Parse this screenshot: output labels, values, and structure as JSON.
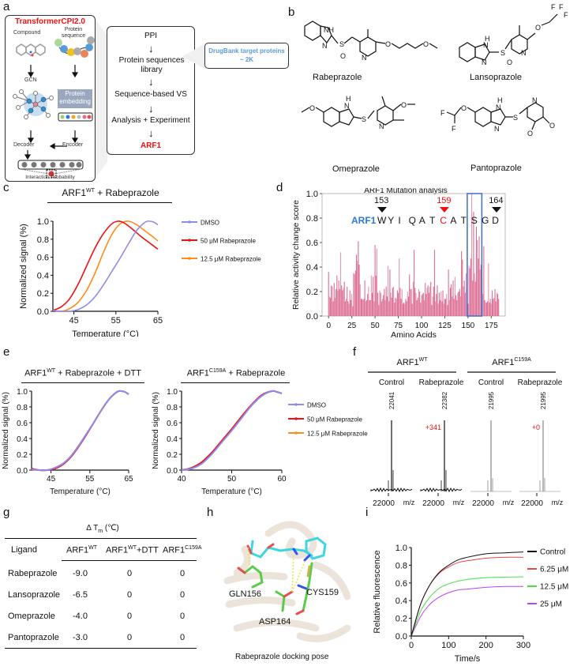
{
  "panels": {
    "a": {
      "label": "a",
      "model_title": "TransformerCPI2.0",
      "compound": "Compound",
      "protein_sequence": "Protein sequence",
      "gcn": "GCN",
      "protein_embedding": "Protein embedding",
      "decoder": "Decoder",
      "encoder": "Encoder",
      "interaction_probability": "Interaction Probability",
      "workflow": [
        "PPI",
        "Protein sequences library",
        "Sequence-based VS",
        "Analysis + Experiment",
        "ARF1"
      ],
      "drugbank_line1": "DrugBank target proteins",
      "drugbank_line2": "~ 2K",
      "embedding_dot_colors": [
        "#8fd16b",
        "#2b7bd1",
        "#f2a51a",
        "#bbbbbb",
        "#e0707a",
        "#e05060"
      ],
      "accent_red": "#ee1111",
      "accent_blue": "#5b9bd5"
    },
    "b": {
      "label": "b",
      "compounds": [
        "Rabeprazole",
        "Lansoprazole",
        "Omeprazole",
        "Pantoprazole"
      ]
    },
    "c": {
      "label": "c",
      "header_main": "ARF1",
      "header_sup": "WT",
      "header_rest": " + Rabeprazole"
    },
    "d": {
      "label": "d",
      "seq_prefix": "ARF1",
      "sequence": [
        "W",
        "Y",
        "I",
        "Q",
        "A",
        "T",
        "C",
        "A",
        "T",
        "S",
        "G",
        "D"
      ],
      "markers": [
        {
          "pos": "153",
          "color": "#111111"
        },
        {
          "pos": "159",
          "color": "#ee1111"
        },
        {
          "pos": "164",
          "color": "#111111"
        }
      ]
    },
    "e": {
      "label": "e",
      "left_header_main": "ARF1",
      "left_header_sup": "WT",
      "left_header_rest": " + Rabeprazole + DTT",
      "right_header_main": "ARF1",
      "right_header_sup": "C159A",
      "right_header_rest": " + Rabeprazole"
    },
    "f": {
      "label": "f",
      "groups": [
        {
          "name": "ARF1",
          "sup": "WT",
          "conditions": [
            {
              "name": "Control",
              "peak": "22041",
              "shift": ""
            },
            {
              "name": "Rabeprazole",
              "peak": "22382",
              "shift": "+341"
            }
          ]
        },
        {
          "name": "ARF1",
          "sup": "C159A",
          "conditions": [
            {
              "name": "Control",
              "peak": "21995",
              "shift": ""
            },
            {
              "name": "Rabeprazole",
              "peak": "21995",
              "shift": "+0"
            }
          ]
        }
      ],
      "x_tick": "22000",
      "x_unit": "m/z"
    },
    "g": {
      "label": "g",
      "title_main": "Δ T",
      "title_sub": "m",
      "title_rest": " (℃)",
      "columns": [
        {
          "main": "Ligand",
          "sup": ""
        },
        {
          "main": "ARF1",
          "sup": "WT"
        },
        {
          "main": "ARF1",
          "sup": "WT",
          "rest": "+DTT"
        },
        {
          "main": "ARF1",
          "sup": "C159A"
        }
      ],
      "rows": [
        [
          "Rabeprazole",
          "-9.0",
          "0",
          "0"
        ],
        [
          "Lansoprazole",
          "-6.5",
          "0",
          "0"
        ],
        [
          "Omeprazole",
          "-4.0",
          "0",
          "0"
        ],
        [
          "Pantoprazole",
          "-3.0",
          "0",
          "0"
        ]
      ]
    },
    "h": {
      "label": "h",
      "residues": [
        "GLN156",
        "CYS159",
        "ASP164"
      ],
      "caption": "Rabeprazole docking pose"
    },
    "i": {
      "label": "i"
    }
  },
  "chart_data": [
    {
      "id": "c",
      "type": "line",
      "title": "ARF1WT + Rabeprazole",
      "xlabel": "Temperature (°C)",
      "ylabel": "Normalized signal (%)",
      "xlim": [
        40,
        65
      ],
      "ylim": [
        0,
        1.0
      ],
      "xticks": [
        "45",
        "55",
        "65"
      ],
      "yticks": [
        "0.0",
        "0.2",
        "0.4",
        "0.6",
        "0.8",
        "1.0"
      ],
      "legend_position": "right",
      "series": [
        {
          "name": "DMSO",
          "color": "#8c8cf0",
          "x": [
            40,
            42,
            44,
            46,
            48,
            50,
            52,
            54,
            56,
            58,
            60,
            62,
            63,
            64,
            65
          ],
          "y": [
            0.01,
            0.0,
            0.0,
            0.02,
            0.07,
            0.16,
            0.29,
            0.44,
            0.59,
            0.75,
            0.9,
            0.99,
            1.0,
            0.99,
            0.96
          ]
        },
        {
          "name": "50 μM Rabeprazole",
          "color": "#ee1111",
          "x": [
            40,
            42,
            44,
            46,
            48,
            50,
            52,
            54,
            55.5,
            57,
            59,
            61,
            63,
            65
          ],
          "y": [
            0.01,
            0.05,
            0.14,
            0.3,
            0.5,
            0.7,
            0.86,
            0.97,
            1.0,
            0.98,
            0.91,
            0.83,
            0.76,
            0.69
          ]
        },
        {
          "name": "12.5 μM Rabeprazole",
          "color": "#ff8c1a",
          "x": [
            40,
            42,
            44,
            46,
            48,
            50,
            52,
            54,
            56,
            58,
            60,
            62,
            64,
            65
          ],
          "y": [
            0.01,
            0.0,
            0.03,
            0.1,
            0.23,
            0.42,
            0.65,
            0.85,
            0.97,
            1.0,
            0.96,
            0.89,
            0.82,
            0.78
          ]
        }
      ]
    },
    {
      "id": "d",
      "type": "bar",
      "title": "ARF1 Mutation analysis",
      "xlabel": "Amino Acids",
      "ylabel": "Relative activity change score",
      "xlim": [
        -7,
        190
      ],
      "ylim": [
        0,
        1.0
      ],
      "xticks": [
        "0",
        "25",
        "50",
        "75",
        "100",
        "125",
        "150",
        "175"
      ],
      "yticks": [
        "0.0",
        "0.2",
        "0.4",
        "0.6",
        "0.8",
        "1.0"
      ],
      "highlight_range": [
        150,
        164
      ],
      "color": "#d9608a",
      "values": [
        0.36,
        0.16,
        0.15,
        0.25,
        0.24,
        0.12,
        0.27,
        0.15,
        0.22,
        0.33,
        0.21,
        0.29,
        0.22,
        0.52,
        0.25,
        0.21,
        0.23,
        0.28,
        0.12,
        0.14,
        0.24,
        0.12,
        0.1,
        0.21,
        0.13,
        0.18,
        0.08,
        0.35,
        0.34,
        0.37,
        0.5,
        0.45,
        0.61,
        0.42,
        0.26,
        0.14,
        0.14,
        0.13,
        0.14,
        0.29,
        0.12,
        0.13,
        0.18,
        0.24,
        0.13,
        0.13,
        0.33,
        0.19,
        0.32,
        0.12,
        0.58,
        0.33,
        0.55,
        0.19,
        0.09,
        0.21,
        0.19,
        0.12,
        0.14,
        0.17,
        0.22,
        0.13,
        0.24,
        0.16,
        0.41,
        0.12,
        0.38,
        0.19,
        0.15,
        0.23,
        0.24,
        0.11,
        0.15,
        0.14,
        0.21,
        0.19,
        0.47,
        0.23,
        0.14,
        0.22,
        0.1,
        0.11,
        0.1,
        0.14,
        0.12,
        0.2,
        0.16,
        0.34,
        0.22,
        0.22,
        0.1,
        0.28,
        0.54,
        0.23,
        0.19,
        0.13,
        0.15,
        0.22,
        0.2,
        0.11,
        0.17,
        0.18,
        0.19,
        0.13,
        0.27,
        0.18,
        0.23,
        0.25,
        0.19,
        0.24,
        0.28,
        0.09,
        0.16,
        0.24,
        0.54,
        0.12,
        0.18,
        0.25,
        0.1,
        0.19,
        0.13,
        0.2,
        0.12,
        0.21,
        0.1,
        0.14,
        0.14,
        0.18,
        0.09,
        0.38,
        0.13,
        0.23,
        0.26,
        0.16,
        0.29,
        0.14,
        0.32,
        0.17,
        0.13,
        0.19,
        0.2,
        0.22,
        0.16,
        0.53,
        0.46,
        0.24,
        0.29,
        0.19,
        0.35,
        0.22,
        0.1,
        0.41,
        0.39,
        0.47,
        1.0,
        0.29,
        0.85,
        0.35,
        0.28,
        0.73,
        0.62,
        0.47,
        0.65,
        0.38,
        0.42,
        0.3,
        0.18,
        0.57,
        0.13,
        0.11,
        0.11,
        0.12,
        0.43,
        0.11,
        0.14,
        0.1,
        0.21,
        0.14,
        0.15,
        0.22,
        0.12,
        0.19,
        0.18,
        0.14
      ]
    },
    {
      "id": "e-left",
      "type": "line",
      "title": "ARF1WT + Rabeprazole + DTT",
      "xlabel": "Temperature (°C)",
      "ylabel": "Normalized signal (%)",
      "xlim": [
        40,
        65
      ],
      "ylim": [
        0,
        1.0
      ],
      "xticks": [
        "45",
        "55",
        "65"
      ],
      "yticks": [
        "0.0",
        "0.2",
        "0.4",
        "0.6",
        "0.8",
        "1.0"
      ],
      "series": [
        {
          "name": "DMSO",
          "color": "#8c8cf0",
          "x": [
            40,
            42,
            44,
            46,
            48,
            50,
            52,
            54,
            56,
            58,
            60,
            62,
            63,
            64,
            65
          ],
          "y": [
            0.01,
            0.0,
            0.0,
            0.03,
            0.08,
            0.17,
            0.3,
            0.45,
            0.6,
            0.76,
            0.9,
            0.99,
            1.0,
            0.99,
            0.96
          ]
        },
        {
          "name": "50 μM Rabeprazole",
          "color": "#ee1111",
          "x": [
            40,
            42,
            44,
            46,
            48,
            50,
            52,
            54,
            56,
            58,
            60,
            62,
            63,
            64,
            65
          ],
          "y": [
            0.02,
            0.0,
            0.0,
            0.02,
            0.07,
            0.16,
            0.29,
            0.44,
            0.6,
            0.76,
            0.9,
            0.99,
            1.0,
            0.99,
            0.96
          ]
        },
        {
          "name": "12.5 μM Rabeprazole",
          "color": "#ff8c1a",
          "x": [
            40,
            42,
            44,
            46,
            48,
            50,
            52,
            54,
            56,
            58,
            60,
            62,
            63,
            64,
            65
          ],
          "y": [
            0.01,
            0.0,
            0.0,
            0.02,
            0.07,
            0.16,
            0.29,
            0.44,
            0.6,
            0.76,
            0.9,
            0.99,
            1.0,
            0.99,
            0.96
          ]
        }
      ]
    },
    {
      "id": "e-right",
      "type": "line",
      "title": "ARF1C159A + Rabeprazole",
      "xlabel": "Temperature (°C)",
      "ylabel": "Normalized signal (%)",
      "xlim": [
        40,
        60
      ],
      "ylim": [
        0,
        1.0
      ],
      "xticks": [
        "40",
        "50",
        "60"
      ],
      "yticks": [
        "0.0",
        "0.2",
        "0.4",
        "0.6",
        "0.8",
        "1.0"
      ],
      "legend_position": "right",
      "series": [
        {
          "name": "DMSO",
          "color": "#8c8cf0",
          "x": [
            40,
            42,
            44,
            46,
            48,
            50,
            52,
            54,
            56,
            58,
            59,
            60
          ],
          "y": [
            0.0,
            0.02,
            0.08,
            0.2,
            0.35,
            0.5,
            0.66,
            0.82,
            0.94,
            1.0,
            0.99,
            0.97
          ]
        },
        {
          "name": "50 μM Rabeprazole",
          "color": "#ee1111",
          "x": [
            40,
            42,
            44,
            46,
            48,
            50,
            52,
            54,
            56,
            58,
            59,
            60
          ],
          "y": [
            0.0,
            0.03,
            0.1,
            0.22,
            0.37,
            0.52,
            0.68,
            0.83,
            0.95,
            1.0,
            0.99,
            0.97
          ]
        },
        {
          "name": "12.5 μM Rabeprazole",
          "color": "#ff8c1a",
          "x": [
            40,
            42,
            44,
            46,
            48,
            50,
            52,
            54,
            56,
            58,
            59,
            60
          ],
          "y": [
            0.0,
            0.02,
            0.09,
            0.21,
            0.36,
            0.51,
            0.67,
            0.82,
            0.94,
            1.0,
            0.99,
            0.97
          ]
        }
      ]
    },
    {
      "id": "i",
      "type": "line",
      "title": "",
      "xlabel": "Time/s",
      "ylabel": "Relative fluorescence",
      "xlim": [
        0,
        300
      ],
      "ylim": [
        0,
        1.0
      ],
      "xticks": [
        "0",
        "100",
        "200",
        "300"
      ],
      "yticks": [
        "0.0",
        "0.2",
        "0.4",
        "0.6",
        "0.8",
        "1.0"
      ],
      "legend_position": "right",
      "series": [
        {
          "name": "Control",
          "color": "#111111",
          "x": [
            0,
            25,
            50,
            75,
            100,
            125,
            150,
            200,
            250,
            300
          ],
          "y": [
            0.0,
            0.36,
            0.58,
            0.72,
            0.8,
            0.86,
            0.89,
            0.93,
            0.94,
            0.95
          ]
        },
        {
          "name": "6.25 μM",
          "color": "#ee4444",
          "x": [
            0,
            25,
            50,
            75,
            100,
            125,
            150,
            200,
            250,
            300
          ],
          "y": [
            0.0,
            0.36,
            0.58,
            0.71,
            0.78,
            0.83,
            0.85,
            0.88,
            0.89,
            0.89
          ]
        },
        {
          "name": "12.5 μM",
          "color": "#44dd44",
          "x": [
            0,
            25,
            50,
            75,
            100,
            125,
            150,
            200,
            250,
            300
          ],
          "y": [
            0.0,
            0.28,
            0.44,
            0.54,
            0.59,
            0.62,
            0.64,
            0.66,
            0.665,
            0.67
          ]
        },
        {
          "name": "25 μM",
          "color": "#bb44ee",
          "x": [
            0,
            25,
            50,
            75,
            100,
            125,
            150,
            200,
            250,
            300
          ],
          "y": [
            0.0,
            0.22,
            0.36,
            0.44,
            0.49,
            0.52,
            0.53,
            0.55,
            0.56,
            0.56
          ]
        }
      ]
    }
  ]
}
